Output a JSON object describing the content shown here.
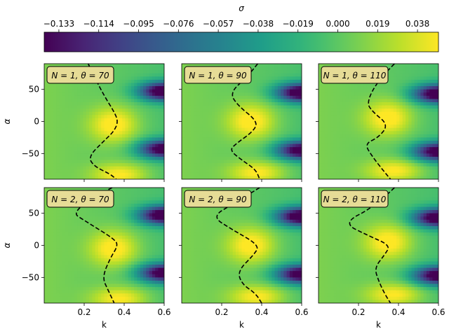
{
  "chart_data": {
    "type": "heatmap",
    "colorbar": {
      "label": "σ",
      "range": [
        -0.14,
        0.048
      ],
      "colormap": "viridis",
      "ticks": [
        -0.133,
        -0.114,
        -0.095,
        -0.076,
        -0.057,
        -0.038,
        -0.019,
        0.0,
        0.019,
        0.038
      ],
      "tick_labels": [
        "−0.133",
        "−0.114",
        "−0.095",
        "−0.076",
        "−0.057",
        "−0.038",
        "−0.019",
        "0.000",
        "0.019",
        "0.038"
      ]
    },
    "xlabel": "k",
    "ylabel": "α",
    "xlim": [
      0.0,
      0.6
    ],
    "ylim": [
      -90,
      90
    ],
    "xticks": [
      0.2,
      0.4,
      0.6
    ],
    "xtick_labels": [
      "0.2",
      "0.4",
      "0.6"
    ],
    "yticks": [
      50,
      0,
      -50
    ],
    "ytick_labels": [
      "50",
      "0",
      "−50"
    ],
    "legend_box_color": "#e6dc96",
    "contour_style": "black dashed",
    "panels": [
      {
        "N": 1,
        "theta": 70,
        "label": "N = 1, θ = 70",
        "contour": [
          [
            0.22,
            90
          ],
          [
            0.25,
            70
          ],
          [
            0.3,
            40
          ],
          [
            0.35,
            15
          ],
          [
            0.37,
            0
          ],
          [
            0.35,
            -15
          ],
          [
            0.3,
            -30
          ],
          [
            0.22,
            -55
          ],
          [
            0.25,
            -70
          ],
          [
            0.33,
            -82
          ],
          [
            0.36,
            -90
          ]
        ]
      },
      {
        "N": 1,
        "theta": 90,
        "label": "N = 1, θ = 90",
        "contour": [
          [
            0.38,
            90
          ],
          [
            0.33,
            70
          ],
          [
            0.24,
            45
          ],
          [
            0.28,
            25
          ],
          [
            0.38,
            0
          ],
          [
            0.36,
            -15
          ],
          [
            0.27,
            -35
          ],
          [
            0.24,
            -45
          ],
          [
            0.3,
            -60
          ],
          [
            0.37,
            -75
          ],
          [
            0.39,
            -90
          ]
        ]
      },
      {
        "N": 1,
        "theta": 110,
        "label": "N = 1, θ = 110",
        "contour": [
          [
            0.38,
            90
          ],
          [
            0.3,
            65
          ],
          [
            0.24,
            30
          ],
          [
            0.27,
            15
          ],
          [
            0.35,
            -5
          ],
          [
            0.3,
            -25
          ],
          [
            0.23,
            -35
          ],
          [
            0.27,
            -55
          ],
          [
            0.32,
            -75
          ],
          [
            0.36,
            -90
          ]
        ]
      },
      {
        "N": 2,
        "theta": 70,
        "label": "N = 2, θ = 70",
        "contour": [
          [
            0.34,
            90
          ],
          [
            0.12,
            55
          ],
          [
            0.22,
            35
          ],
          [
            0.35,
            10
          ],
          [
            0.37,
            0
          ],
          [
            0.33,
            -20
          ],
          [
            0.29,
            -50
          ],
          [
            0.32,
            -70
          ],
          [
            0.35,
            -90
          ]
        ]
      },
      {
        "N": 2,
        "theta": 90,
        "label": "N = 2, θ = 90",
        "contour": [
          [
            0.39,
            90
          ],
          [
            0.26,
            65
          ],
          [
            0.15,
            45
          ],
          [
            0.25,
            25
          ],
          [
            0.39,
            0
          ],
          [
            0.36,
            -15
          ],
          [
            0.28,
            -40
          ],
          [
            0.3,
            -60
          ],
          [
            0.37,
            -75
          ],
          [
            0.4,
            -90
          ]
        ]
      },
      {
        "N": 2,
        "theta": 110,
        "label": "N = 2, θ = 110",
        "contour": [
          [
            0.38,
            90
          ],
          [
            0.28,
            60
          ],
          [
            0.12,
            35
          ],
          [
            0.25,
            15
          ],
          [
            0.36,
            0
          ],
          [
            0.33,
            -15
          ],
          [
            0.28,
            -35
          ],
          [
            0.3,
            -55
          ],
          [
            0.33,
            -75
          ],
          [
            0.36,
            -90
          ]
        ]
      }
    ]
  }
}
